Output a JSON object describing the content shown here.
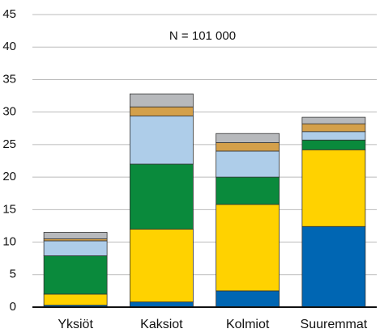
{
  "chart_data": {
    "type": "stacked_bar",
    "annotation": "N = 101 000",
    "categories": [
      "Yksiöt",
      "Kaksiot",
      "Kolmiot",
      "Suuremmat"
    ],
    "series": [
      {
        "color": "#0066b3",
        "values": [
          0.3,
          0.8,
          2.5,
          12.4
        ]
      },
      {
        "color": "#ffd200",
        "values": [
          1.7,
          11.2,
          13.3,
          11.8
        ]
      },
      {
        "color": "#0a8a3c",
        "values": [
          5.9,
          10.0,
          4.2,
          1.5
        ]
      },
      {
        "color": "#aecde9",
        "values": [
          2.3,
          7.4,
          4.0,
          1.3
        ]
      },
      {
        "color": "#d4a04a",
        "values": [
          0.3,
          1.4,
          1.3,
          1.2
        ]
      },
      {
        "color": "#b7b9bc",
        "values": [
          1.0,
          2.0,
          1.4,
          1.0
        ]
      }
    ],
    "ylim": [
      0,
      45
    ],
    "yticks": [
      0,
      5,
      10,
      15,
      20,
      25,
      30,
      35,
      40,
      45
    ],
    "grid": true
  }
}
